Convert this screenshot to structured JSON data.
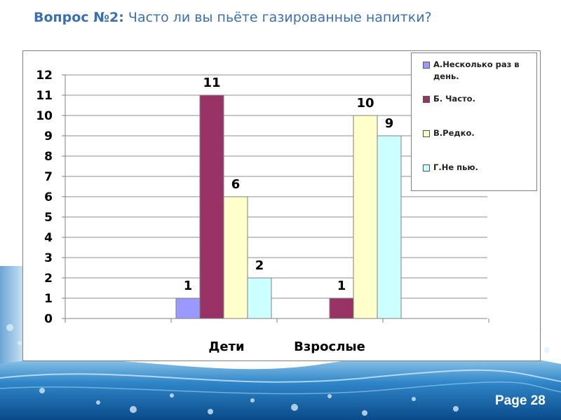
{
  "slide": {
    "title_prefix": "Вопрос №2:",
    "title_text": "Часто ли вы пьёте газированные напитки?",
    "page_label": "Page 28"
  },
  "colors": {
    "title": "#3a6fb0",
    "series": [
      "#9999ff",
      "#993366",
      "#ffffcc",
      "#ccffff"
    ]
  },
  "chart_data": {
    "type": "bar",
    "categories": [
      "Дети",
      "Взрослые"
    ],
    "series": [
      {
        "name": "А.Несколько раз в день.",
        "values": [
          1,
          0
        ],
        "labels": [
          "1",
          ""
        ]
      },
      {
        "name": "Б. Часто.",
        "values": [
          11,
          1
        ],
        "labels": [
          "11",
          "1"
        ]
      },
      {
        "name": "В.Редко.",
        "values": [
          6,
          10
        ],
        "labels": [
          "6",
          "10"
        ]
      },
      {
        "name": "Г.Не пью.",
        "values": [
          2,
          9
        ],
        "labels": [
          "2",
          "9"
        ]
      }
    ],
    "ylim": [
      0,
      12
    ],
    "yticks": [
      "0",
      "1",
      "2",
      "3",
      "4",
      "5",
      "6",
      "7",
      "8",
      "9",
      "10",
      "11",
      "12"
    ],
    "grid": true,
    "legend_position": "top-right"
  }
}
